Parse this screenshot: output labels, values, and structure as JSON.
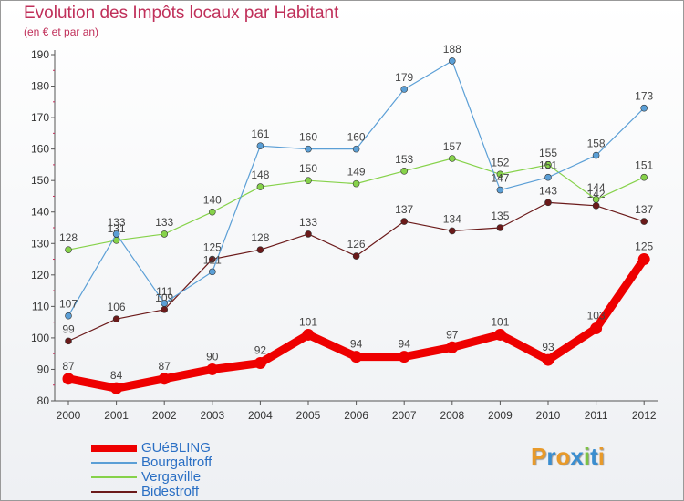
{
  "header": {
    "title": "Evolution des Impôts locaux par Habitant",
    "subtitle": "(en € et par an)"
  },
  "logo": {
    "text": "Proxiti",
    "colors": [
      "#e89a2a",
      "#3a8ed0",
      "#e89a2a",
      "#3a8ed0",
      "#7cc243",
      "#3a8ed0",
      "#e89a2a"
    ]
  },
  "chart_data": {
    "type": "line",
    "title": "Evolution des Impôts locaux par Habitant",
    "subtitle": "(en € et par an)",
    "xlabel": "",
    "ylabel": "",
    "ylim": [
      80,
      190
    ],
    "yticks": [
      "80",
      "90",
      "100",
      "110",
      "120",
      "130",
      "140",
      "150",
      "160",
      "170",
      "180",
      "190"
    ],
    "categories": [
      "2000",
      "2001",
      "2002",
      "2003",
      "2004",
      "2005",
      "2006",
      "2007",
      "2008",
      "2009",
      "2010",
      "2011",
      "2012"
    ],
    "legend_position": "bottom-left",
    "series": [
      {
        "name": "Bidestroff",
        "color": "#6b1a1a",
        "values": [
          99,
          106,
          109,
          125,
          128,
          133,
          126,
          137,
          134,
          135,
          143,
          142,
          137
        ],
        "labels": [
          "99",
          "106",
          "109",
          "125",
          "128",
          "133",
          "126",
          "137",
          "134",
          "135",
          "143",
          "142",
          "137"
        ]
      },
      {
        "name": "Vergaville",
        "color": "#86d24a",
        "values": [
          128,
          131,
          133,
          140,
          148,
          150,
          149,
          153,
          157,
          152,
          155,
          144,
          151
        ],
        "labels": [
          "128",
          "131",
          "133",
          "140",
          "148",
          "150",
          "149",
          "153",
          "157",
          "152",
          "155",
          "144",
          "151"
        ]
      },
      {
        "name": "Bourgaltroff",
        "color": "#5b9fd6",
        "values": [
          107,
          133,
          111,
          121,
          161,
          160,
          160,
          179,
          188,
          147,
          151,
          158,
          173
        ],
        "labels": [
          "107",
          "133",
          "111",
          "121",
          "161",
          "160",
          "160",
          "179",
          "188",
          "147",
          "151",
          "158",
          "173"
        ]
      },
      {
        "name": "GUéBLING",
        "color": "#ee0000",
        "values": [
          87,
          84,
          87,
          90,
          92,
          101,
          94,
          94,
          97,
          101,
          93,
          103,
          125
        ],
        "labels": [
          "87",
          "84",
          "87",
          "90",
          "92",
          "101",
          "94",
          "94",
          "97",
          "101",
          "93",
          "103",
          "125"
        ]
      }
    ],
    "legend": [
      "GUéBLING",
      "Bourgaltroff",
      "Vergaville",
      "Bidestroff"
    ]
  }
}
